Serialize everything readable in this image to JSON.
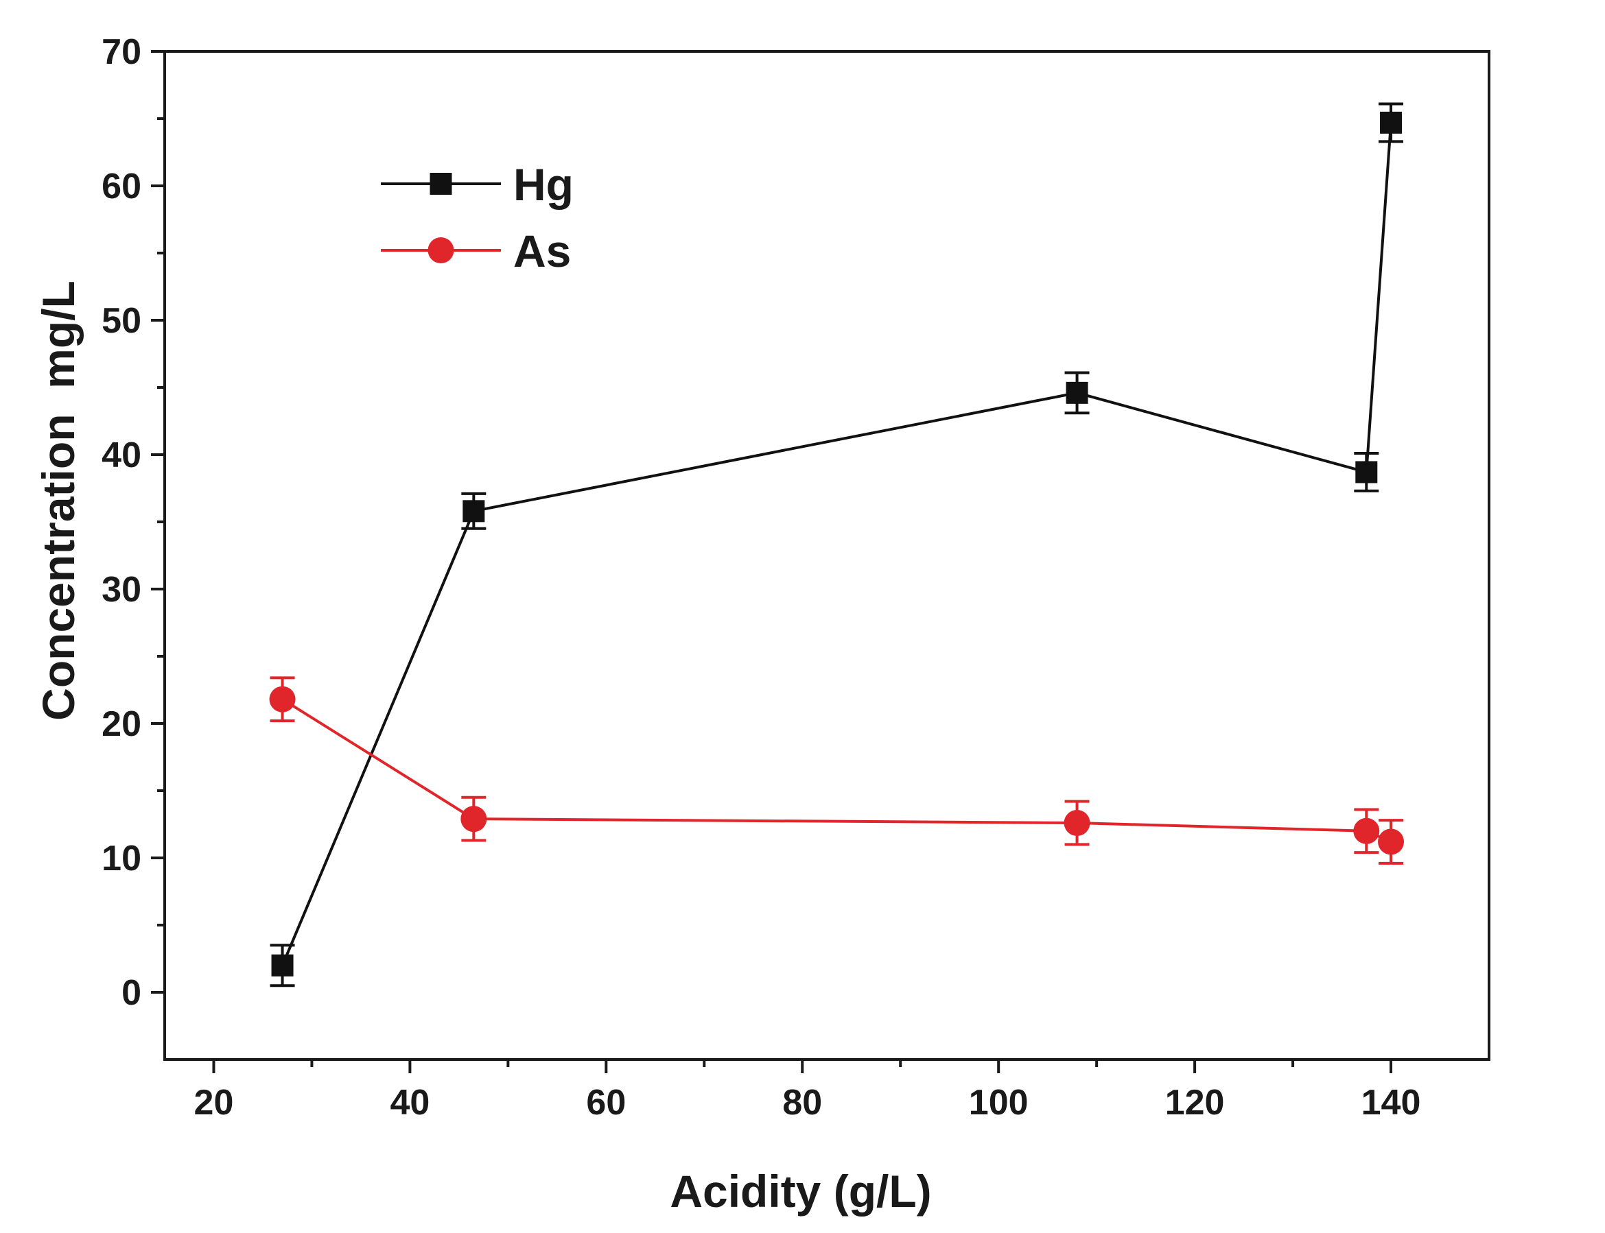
{
  "chart_data": {
    "type": "line",
    "title": "",
    "xlabel": "Acidity (g/L)",
    "ylabel": "Concentration  mg/L",
    "xlim": [
      15,
      150
    ],
    "ylim": [
      -5,
      70
    ],
    "xticks": [
      20,
      40,
      60,
      80,
      100,
      120,
      140
    ],
    "xticks_minor": [
      30,
      50,
      70,
      90,
      110,
      130
    ],
    "yticks": [
      0,
      10,
      20,
      30,
      40,
      50,
      60,
      70
    ],
    "yticks_minor": [
      5,
      15,
      25,
      35,
      45,
      55,
      65
    ],
    "grid": false,
    "legend_position": "upper-left",
    "series": [
      {
        "name": "Hg",
        "color": "#111111",
        "marker": "square",
        "x": [
          27,
          46.5,
          108,
          137.5,
          140
        ],
        "y": [
          2.0,
          35.8,
          44.6,
          38.7,
          64.7
        ],
        "error": [
          1.5,
          1.3,
          1.5,
          1.4,
          1.4
        ]
      },
      {
        "name": "As",
        "color": "#e0262b",
        "marker": "circle",
        "x": [
          27,
          46.5,
          108,
          137.5,
          140
        ],
        "y": [
          21.8,
          12.9,
          12.6,
          12.0,
          11.2
        ],
        "error": [
          1.6,
          1.6,
          1.6,
          1.6,
          1.6
        ]
      }
    ]
  }
}
